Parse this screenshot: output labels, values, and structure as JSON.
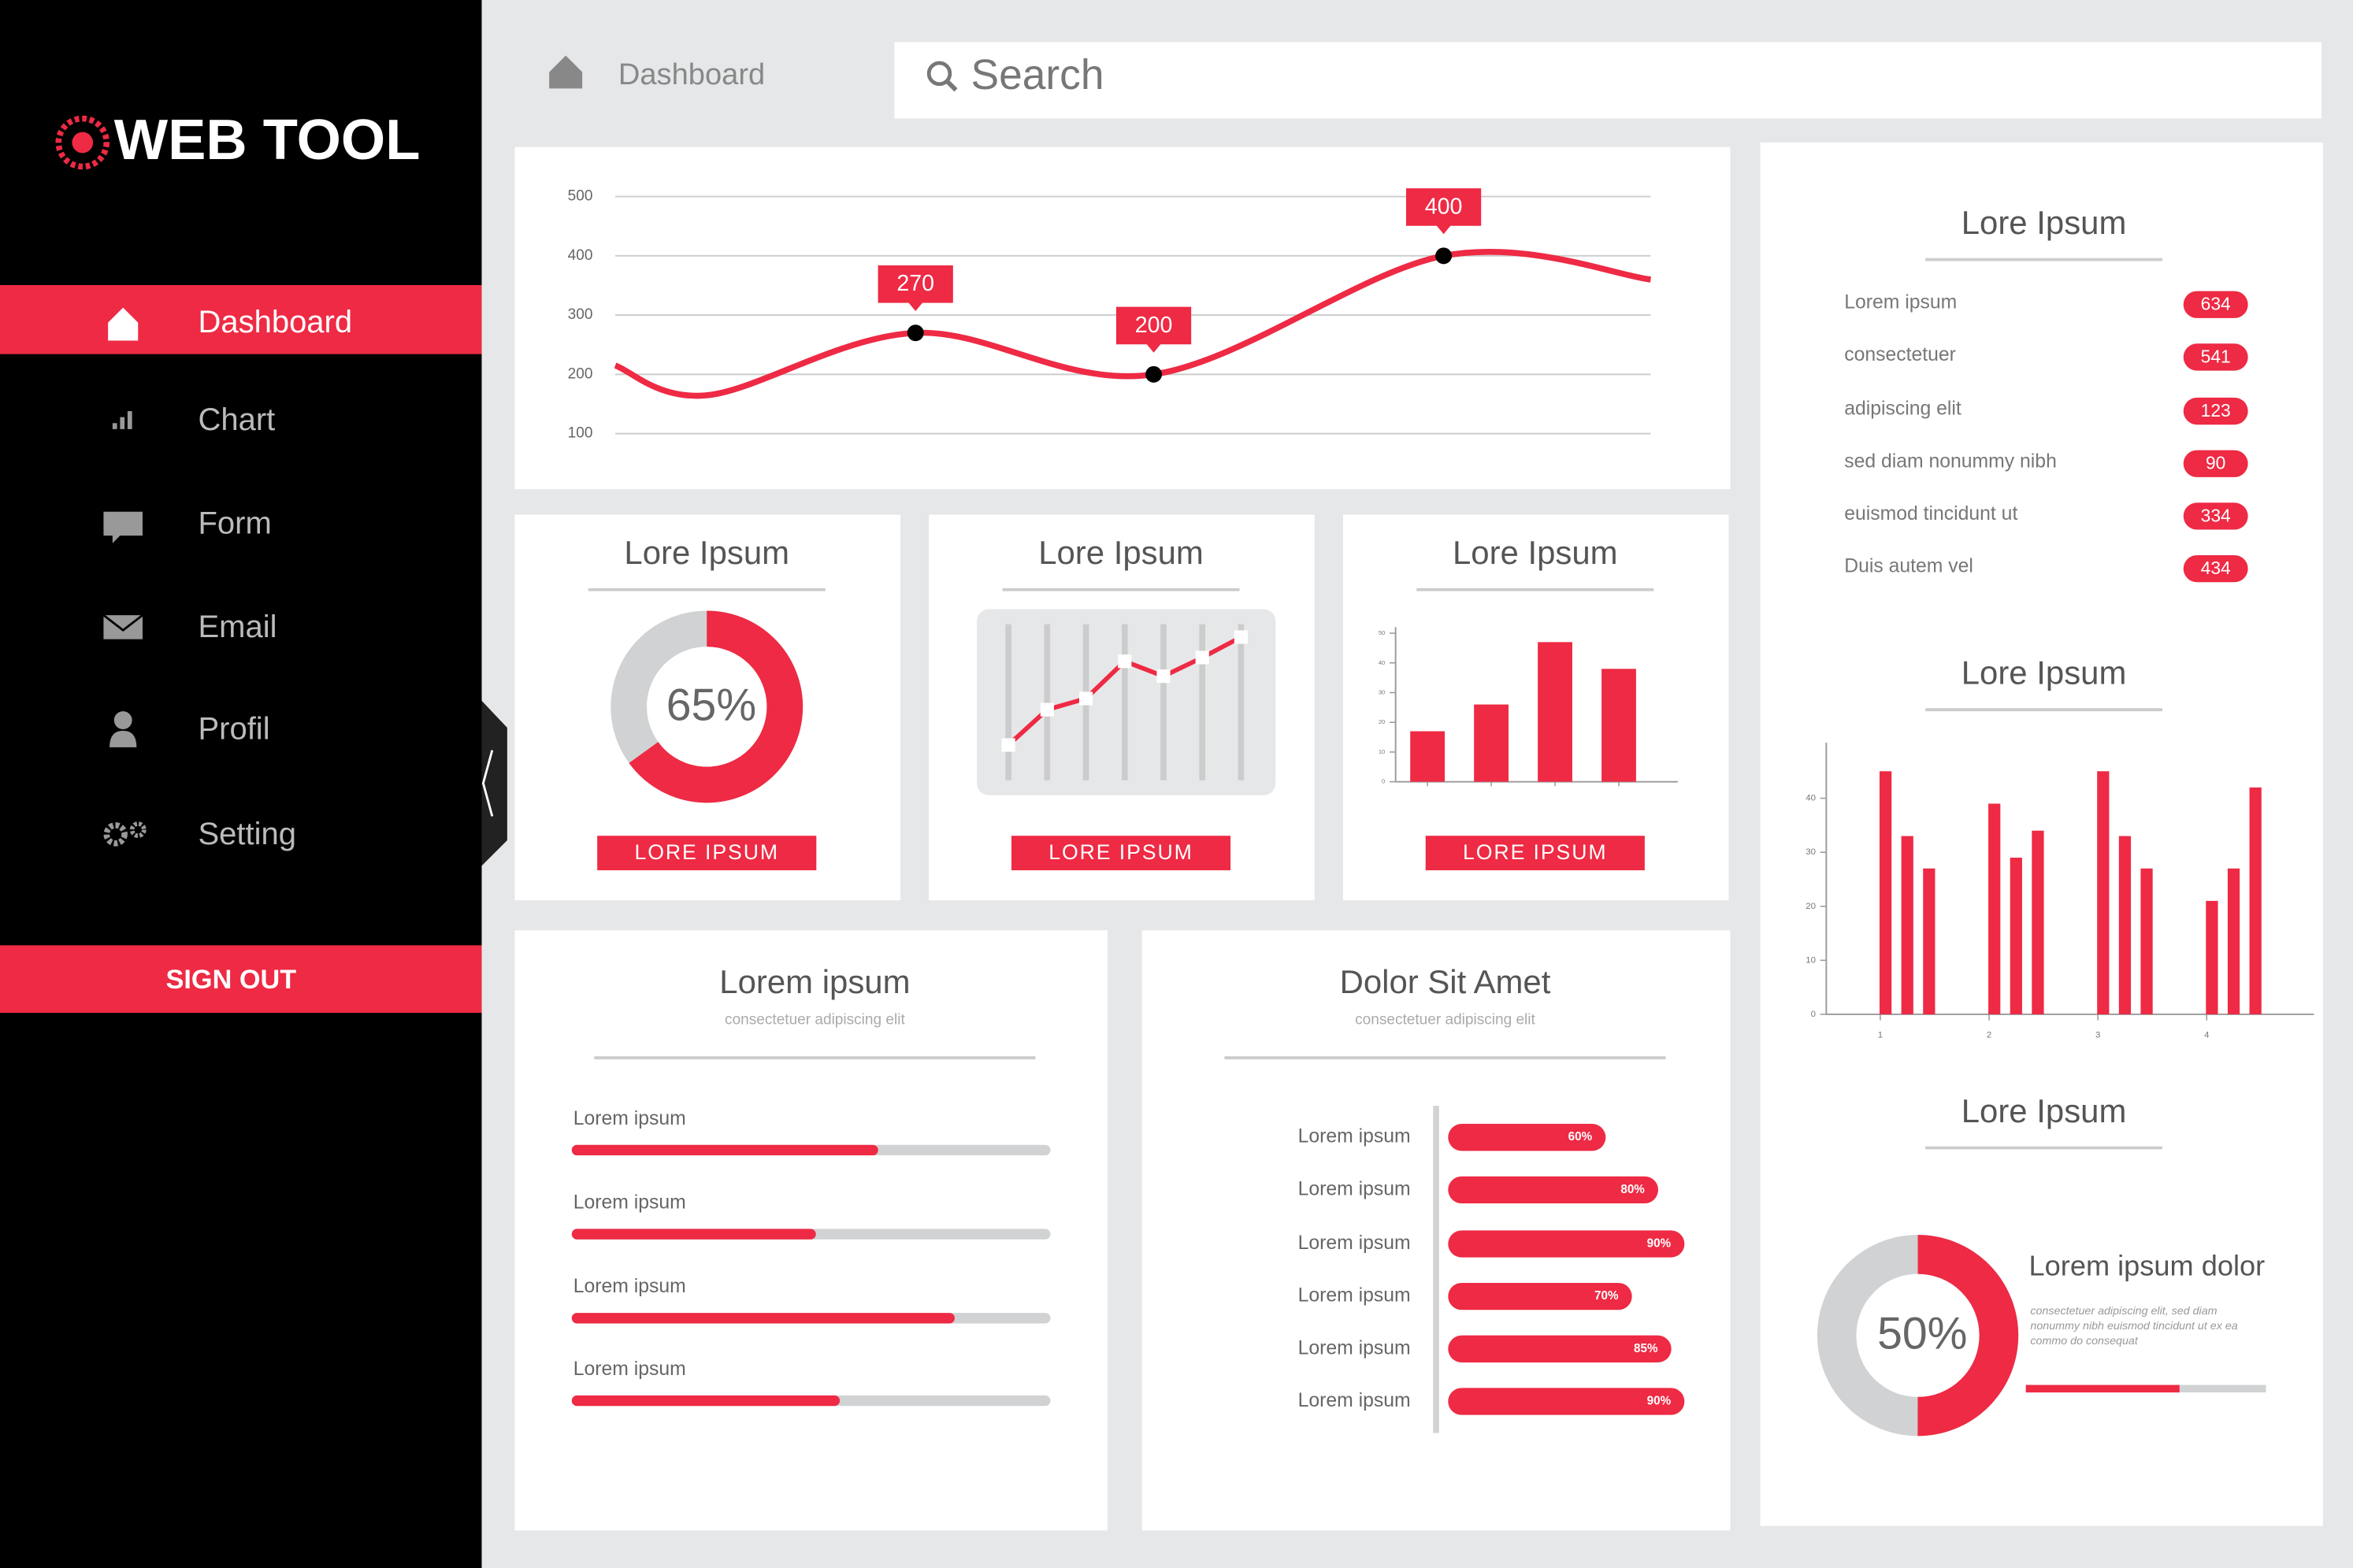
{
  "sidebar": {
    "logo": "WEB TOOL",
    "menu": [
      "Dashboard",
      "Chart",
      "Form",
      "Email",
      "Profil",
      "Setting"
    ],
    "sign_out": "SIGN OUT"
  },
  "header": {
    "breadcrumb": "Dashboard",
    "search": "Search"
  },
  "list": {
    "title": "Lore Ipsum",
    "items": [
      "Lorem ipsum",
      "consectetuer",
      "adipiscing elit",
      "sed diam nonummy nibh",
      "euismod tincidunt ut",
      "Duis autem vel"
    ],
    "values": [
      634,
      541,
      123,
      90,
      334,
      434
    ]
  },
  "chart_data": [
    {
      "type": "line",
      "x": [
        0,
        9,
        29,
        52,
        80,
        100
      ],
      "xlim": [
        0,
        100
      ],
      "values": [
        215,
        165,
        270,
        200,
        400,
        360
      ],
      "ylim": [
        100,
        500
      ],
      "yticks": [
        100,
        200,
        300,
        400,
        500
      ],
      "grid": true,
      "color": "#ee2a44",
      "highlights": {
        "x": [
          29,
          52,
          80
        ],
        "values": [
          270,
          200,
          400
        ]
      }
    },
    {
      "type": "donut",
      "title": "Lore Ipsum",
      "value": 65,
      "value_label": "65%",
      "button": "LORE IPSUM",
      "color": "#ee2a44"
    },
    {
      "type": "line",
      "title": "Lore Ipsum",
      "values": [
        27,
        46,
        52,
        72,
        64,
        74,
        85
      ],
      "ylim": [
        0,
        100
      ],
      "button": "LORE IPSUM",
      "color": "#ee2a44"
    },
    {
      "type": "bar",
      "title": "Lore Ipsum",
      "values": [
        17,
        26,
        47,
        38
      ],
      "ylim": [
        0,
        50
      ],
      "yticks": [
        0,
        10,
        20,
        30,
        40,
        50
      ],
      "button": "LORE IPSUM",
      "color": "#ee2a44"
    },
    {
      "type": "progress",
      "title": "Lorem ipsum",
      "subtitle": "consectetuer adipiscing elit",
      "categories": [
        "Lorem ipsum",
        "Lorem ipsum",
        "Lorem ipsum",
        "Lorem ipsum"
      ],
      "values": [
        64,
        51,
        80,
        56
      ],
      "xlim": [
        0,
        100
      ],
      "color": "#ee2a44"
    },
    {
      "type": "hbar",
      "title": "Dolor Sit Amet",
      "subtitle": "consectetuer adipiscing elit",
      "categories": [
        "Lorem ipsum",
        "Lorem ipsum",
        "Lorem ipsum",
        "Lorem ipsum",
        "Lorem ipsum",
        "Lorem ipsum"
      ],
      "values": [
        60,
        80,
        90,
        70,
        85,
        90
      ],
      "value_labels": [
        "60%",
        "80%",
        "90%",
        "70%",
        "85%",
        "90%"
      ],
      "xlim": [
        0,
        100
      ],
      "color": "#ee2a44"
    },
    {
      "type": "bar",
      "title": "Lore Ipsum",
      "categories": [
        "1",
        "2",
        "3",
        "4"
      ],
      "series": [
        {
          "values": [
            45,
            39,
            45,
            21
          ]
        },
        {
          "values": [
            33,
            29,
            33,
            27
          ]
        },
        {
          "values": [
            27,
            34,
            27,
            42
          ]
        }
      ],
      "ylim": [
        0,
        50
      ],
      "yticks": [
        0,
        10,
        20,
        30,
        40
      ],
      "color": "#ee2a44"
    },
    {
      "type": "donut",
      "title": "Lore Ipsum",
      "value": 50,
      "value_label": "50%",
      "heading": "Lorem ipsum dolor",
      "text": [
        "consectetuer adipiscing elit, sed diam",
        "nonummy nibh euismod tincidunt ut  ex ea",
        "commo do consequat"
      ],
      "progress": 64,
      "color": "#ee2a44"
    }
  ]
}
